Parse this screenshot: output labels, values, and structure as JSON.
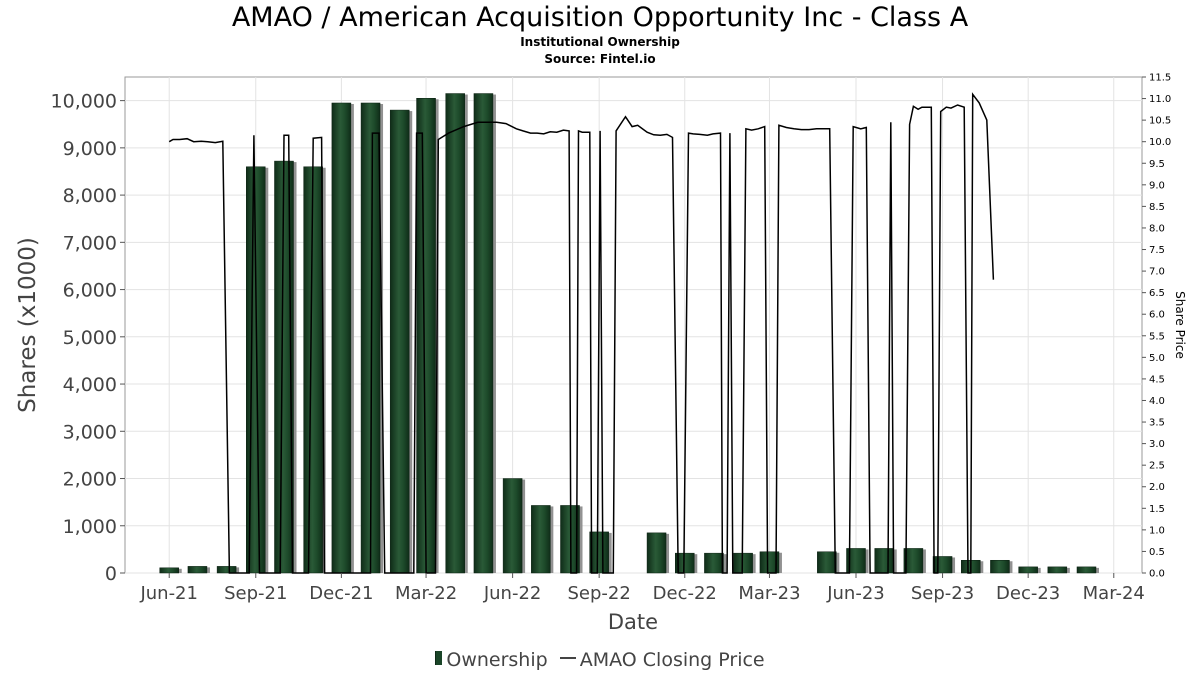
{
  "chart": {
    "title": "AMAO / American Acquisition Opportunity Inc - Class A",
    "subtitle1": "Institutional Ownership",
    "subtitle2": "Source: Fintel.io",
    "xlabel": "Date",
    "ylabel_left": "Shares (x1000)",
    "ylabel_right": "Share Price",
    "legend_ownership": "Ownership",
    "legend_price": "AMAO Closing Price"
  },
  "chart_data": {
    "type": "bar",
    "x_tick_labels": [
      "Jun-21",
      "Sep-21",
      "Dec-21",
      "Mar-22",
      "Jun-22",
      "Sep-22",
      "Dec-22",
      "Mar-23",
      "Jun-23",
      "Sep-23",
      "Dec-23",
      "Mar-24"
    ],
    "y_left_ticks": [
      "0",
      "1,000",
      "2,000",
      "3,000",
      "4,000",
      "5,000",
      "6,000",
      "7,000",
      "8,000",
      "9,000",
      "10,000"
    ],
    "y_left_range": [
      0,
      10500
    ],
    "y_right_ticks": [
      "0.0",
      "0.5",
      "1.0",
      "1.5",
      "2.0",
      "2.5",
      "3.0",
      "3.5",
      "4.0",
      "4.5",
      "5.0",
      "5.5",
      "6.0",
      "6.5",
      "7.0",
      "7.5",
      "8.0",
      "8.5",
      "9.0",
      "9.5",
      "10.0",
      "10.5",
      "11.0",
      "11.5"
    ],
    "y_right_range": [
      0,
      11.5
    ],
    "grid": true,
    "legend_position": "bottom",
    "series": [
      {
        "name": "Ownership",
        "type": "bar",
        "color": "#1a4528",
        "points": [
          [
            "2021-06-01",
            110
          ],
          [
            "2021-07-01",
            140
          ],
          [
            "2021-08-01",
            140
          ],
          [
            "2021-09-01",
            8600
          ],
          [
            "2021-10-01",
            8720
          ],
          [
            "2021-11-01",
            8600
          ],
          [
            "2021-12-01",
            9950
          ],
          [
            "2022-01-01",
            9950
          ],
          [
            "2022-02-01",
            9800
          ],
          [
            "2022-03-01",
            10050
          ],
          [
            "2022-04-01",
            10150
          ],
          [
            "2022-05-01",
            10150
          ],
          [
            "2022-06-01",
            2000
          ],
          [
            "2022-07-01",
            1430
          ],
          [
            "2022-08-01",
            1430
          ],
          [
            "2022-09-01",
            870
          ],
          [
            "2022-11-01",
            850
          ],
          [
            "2022-12-01",
            420
          ],
          [
            "2023-01-01",
            420
          ],
          [
            "2023-02-01",
            420
          ],
          [
            "2023-03-01",
            450
          ],
          [
            "2023-05-01",
            450
          ],
          [
            "2023-06-01",
            520
          ],
          [
            "2023-07-01",
            520
          ],
          [
            "2023-08-01",
            520
          ],
          [
            "2023-09-01",
            350
          ],
          [
            "2023-10-01",
            270
          ],
          [
            "2023-11-01",
            270
          ],
          [
            "2023-12-01",
            130
          ],
          [
            "2024-01-01",
            130
          ],
          [
            "2024-02-01",
            130
          ]
        ]
      },
      {
        "name": "AMAO Closing Price",
        "type": "line",
        "color": "#000000",
        "points": [
          [
            "2021-06-01",
            10.0
          ],
          [
            "2021-06-05",
            10.05
          ],
          [
            "2021-06-12",
            10.05
          ],
          [
            "2021-06-20",
            10.07
          ],
          [
            "2021-06-27",
            10.0
          ],
          [
            "2021-07-05",
            10.01
          ],
          [
            "2021-07-12",
            10.0
          ],
          [
            "2021-07-20",
            9.98
          ],
          [
            "2021-07-28",
            10.01
          ],
          [
            "2021-08-04",
            0.0
          ],
          [
            "2021-08-10",
            0.0
          ],
          [
            "2021-08-15",
            0.0
          ],
          [
            "2021-08-25",
            0.0
          ],
          [
            "2021-08-30",
            10.15
          ],
          [
            "2021-09-05",
            0.0
          ],
          [
            "2021-09-15",
            0.0
          ],
          [
            "2021-09-27",
            0.0
          ],
          [
            "2021-10-01",
            10.15
          ],
          [
            "2021-10-06",
            10.15
          ],
          [
            "2021-10-10",
            0.0
          ],
          [
            "2021-10-20",
            0.0
          ],
          [
            "2021-10-27",
            0.0
          ],
          [
            "2021-11-01",
            10.08
          ],
          [
            "2021-11-10",
            10.1
          ],
          [
            "2021-11-13",
            0.0
          ],
          [
            "2021-11-20",
            0.0
          ],
          [
            "2021-12-01",
            0.0
          ],
          [
            "2021-12-10",
            0.0
          ],
          [
            "2022-01-01",
            0.0
          ],
          [
            "2022-01-03",
            10.2
          ],
          [
            "2022-01-10",
            10.2
          ],
          [
            "2022-01-16",
            0.0
          ],
          [
            "2022-02-01",
            0.0
          ],
          [
            "2022-02-16",
            0.0
          ],
          [
            "2022-02-19",
            10.2
          ],
          [
            "2022-02-25",
            10.2
          ],
          [
            "2022-03-01",
            0.0
          ],
          [
            "2022-03-11",
            0.0
          ],
          [
            "2022-03-14",
            10.05
          ],
          [
            "2022-03-25",
            10.2
          ],
          [
            "2022-04-10",
            10.35
          ],
          [
            "2022-04-25",
            10.45
          ],
          [
            "2022-05-15",
            10.45
          ],
          [
            "2022-05-25",
            10.42
          ],
          [
            "2022-06-05",
            10.3
          ],
          [
            "2022-06-12",
            10.25
          ],
          [
            "2022-06-20",
            10.2
          ],
          [
            "2022-06-27",
            10.2
          ],
          [
            "2022-07-04",
            10.18
          ],
          [
            "2022-07-11",
            10.23
          ],
          [
            "2022-07-18",
            10.22
          ],
          [
            "2022-07-25",
            10.27
          ],
          [
            "2022-07-31",
            10.25
          ],
          [
            "2022-08-02",
            0.0
          ],
          [
            "2022-08-08",
            0.0
          ],
          [
            "2022-08-10",
            10.25
          ],
          [
            "2022-08-14",
            10.22
          ],
          [
            "2022-08-22",
            10.22
          ],
          [
            "2022-08-24",
            0.0
          ],
          [
            "2022-08-30",
            0.0
          ],
          [
            "2022-09-02",
            10.25
          ],
          [
            "2022-09-05",
            0.0
          ],
          [
            "2022-09-16",
            0.0
          ],
          [
            "2022-09-19",
            10.25
          ],
          [
            "2022-09-29",
            10.58
          ],
          [
            "2022-10-06",
            10.35
          ],
          [
            "2022-10-12",
            10.38
          ],
          [
            "2022-10-22",
            10.22
          ],
          [
            "2022-10-29",
            10.16
          ],
          [
            "2022-11-05",
            10.15
          ],
          [
            "2022-11-12",
            10.17
          ],
          [
            "2022-11-18",
            10.1
          ],
          [
            "2022-11-24",
            0.0
          ],
          [
            "2022-11-30",
            0.0
          ],
          [
            "2022-12-05",
            10.2
          ],
          [
            "2022-12-10",
            10.18
          ],
          [
            "2022-12-17",
            10.17
          ],
          [
            "2022-12-25",
            10.15
          ],
          [
            "2022-12-31",
            10.18
          ],
          [
            "2023-01-08",
            10.2
          ],
          [
            "2023-01-10",
            0.0
          ],
          [
            "2023-01-15",
            0.0
          ],
          [
            "2023-01-18",
            10.2
          ],
          [
            "2023-01-21",
            0.0
          ],
          [
            "2023-01-31",
            0.0
          ],
          [
            "2023-02-04",
            10.3
          ],
          [
            "2023-02-10",
            10.27
          ],
          [
            "2023-02-17",
            10.3
          ],
          [
            "2023-02-24",
            10.35
          ],
          [
            "2023-02-27",
            0.0
          ],
          [
            "2023-03-08",
            0.0
          ],
          [
            "2023-03-11",
            10.38
          ],
          [
            "2023-03-19",
            10.33
          ],
          [
            "2023-03-27",
            10.3
          ],
          [
            "2023-04-04",
            10.28
          ],
          [
            "2023-04-12",
            10.28
          ],
          [
            "2023-04-20",
            10.3
          ],
          [
            "2023-04-28",
            10.3
          ],
          [
            "2023-05-04",
            10.3
          ],
          [
            "2023-05-10",
            0.0
          ],
          [
            "2023-05-20",
            0.0
          ],
          [
            "2023-05-25",
            0.0
          ],
          [
            "2023-05-29",
            10.35
          ],
          [
            "2023-06-06",
            10.3
          ],
          [
            "2023-06-12",
            10.33
          ],
          [
            "2023-06-16",
            0.0
          ],
          [
            "2023-07-01",
            0.0
          ],
          [
            "2023-07-05",
            0.0
          ],
          [
            "2023-07-08",
            10.45
          ],
          [
            "2023-07-11",
            0.0
          ],
          [
            "2023-07-20",
            0.0
          ],
          [
            "2023-07-24",
            0.0
          ],
          [
            "2023-07-28",
            10.4
          ],
          [
            "2023-08-01",
            10.82
          ],
          [
            "2023-08-06",
            10.75
          ],
          [
            "2023-08-10",
            10.8
          ],
          [
            "2023-08-13",
            10.8
          ],
          [
            "2023-08-20",
            10.8
          ],
          [
            "2023-08-23",
            0.0
          ],
          [
            "2023-08-27",
            0.0
          ],
          [
            "2023-08-30",
            10.7
          ],
          [
            "2023-09-05",
            10.8
          ],
          [
            "2023-09-10",
            10.78
          ],
          [
            "2023-09-17",
            10.85
          ],
          [
            "2023-09-24",
            10.8
          ],
          [
            "2023-09-28",
            0.0
          ],
          [
            "2023-10-01",
            0.0
          ],
          [
            "2023-10-03",
            11.1
          ],
          [
            "2023-10-10",
            10.9
          ],
          [
            "2023-10-18",
            10.5
          ],
          [
            "2023-10-25",
            6.8
          ]
        ]
      }
    ]
  }
}
